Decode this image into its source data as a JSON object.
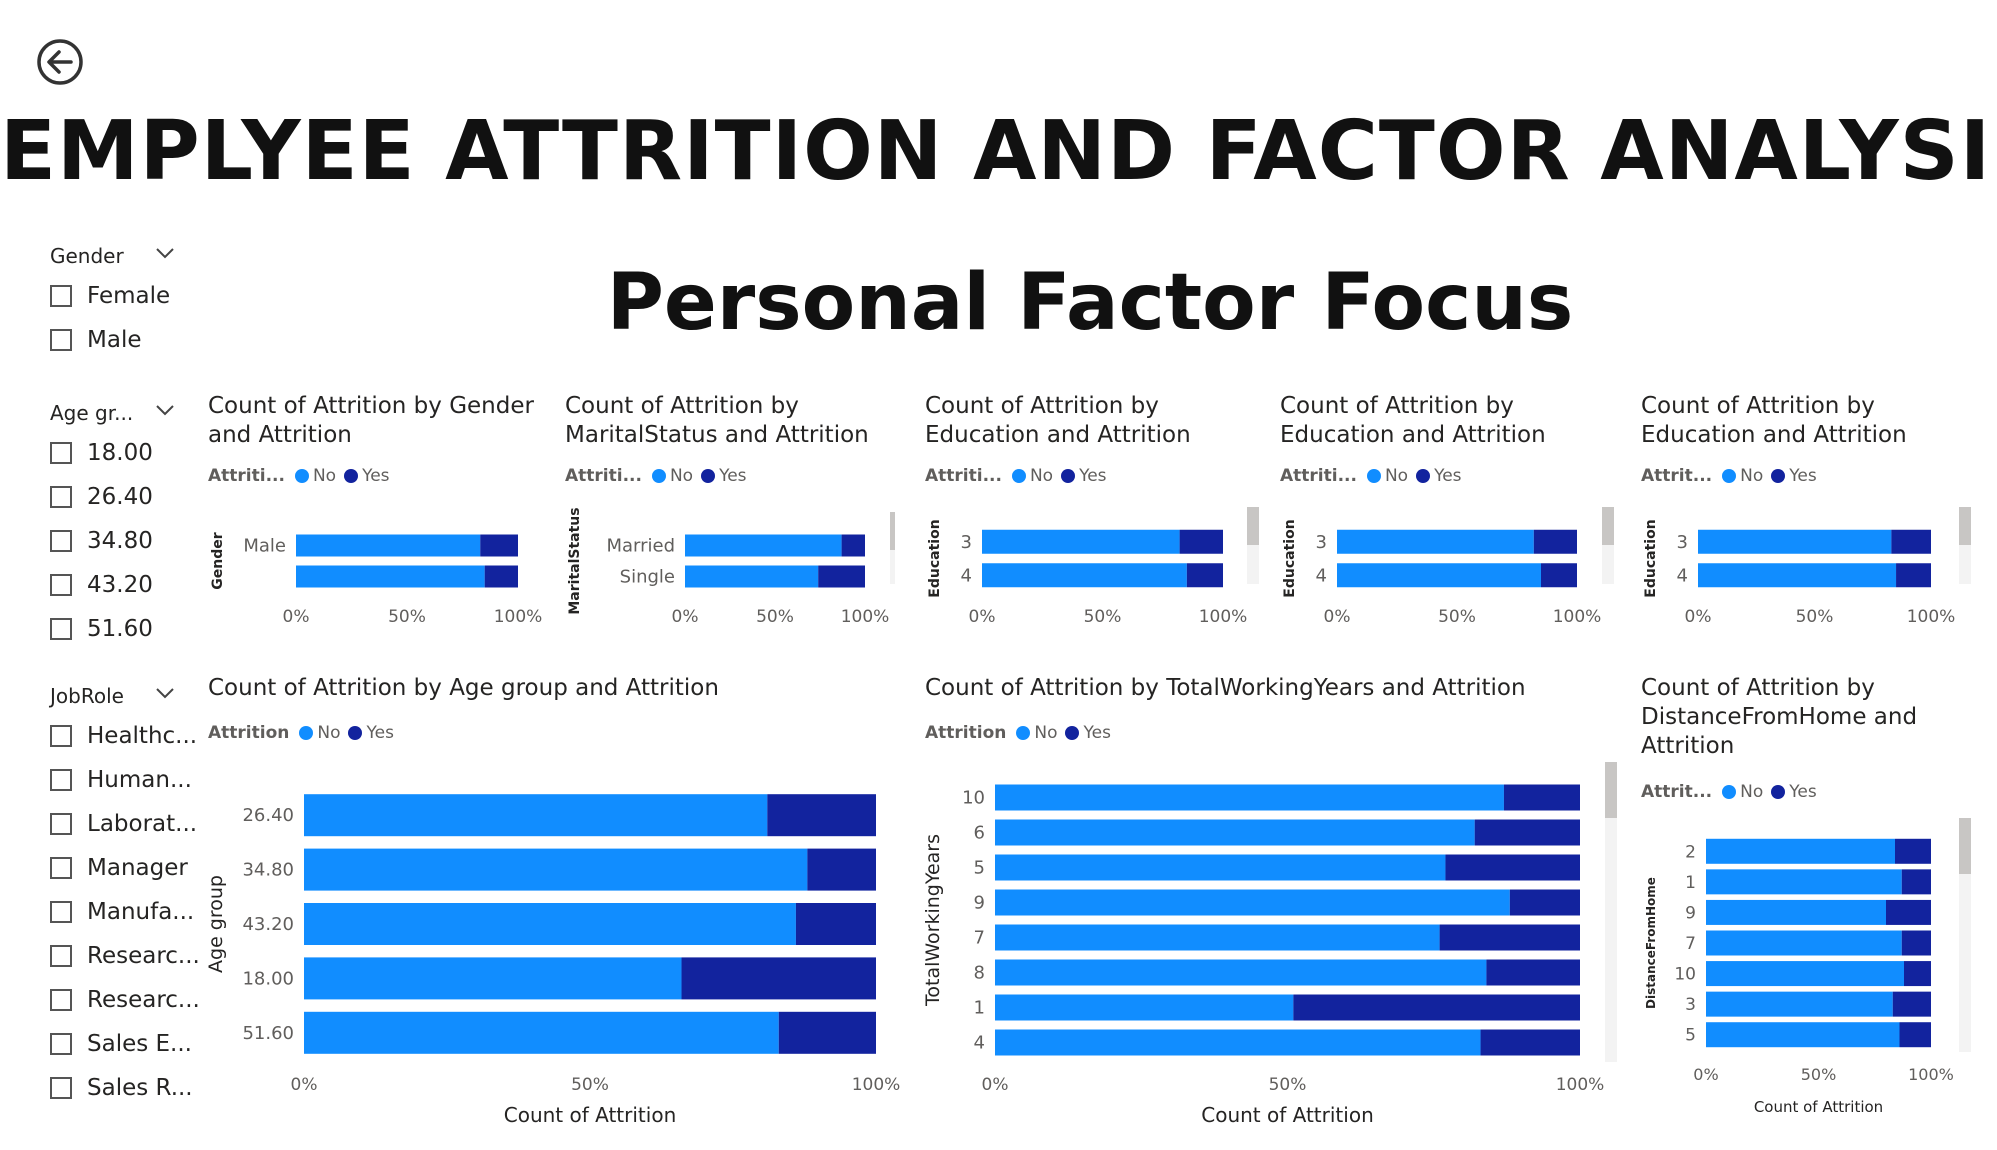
{
  "title": "EMPLYEE ATTRITION AND FACTOR ANALYSIS",
  "subtitle": "Personal Factor Focus",
  "icons": {
    "back": "back-arrow-icon",
    "chevron": "chevron-down-icon"
  },
  "colors": {
    "no": "#118dff",
    "yes": "#12239e",
    "text": "#252423",
    "axis": "#605e5c"
  },
  "slicers": [
    {
      "title": "Gender",
      "items": [
        "Female",
        "Male"
      ]
    },
    {
      "title": "Age gr...",
      "items": [
        "18.00",
        "26.40",
        "34.80",
        "43.20",
        "51.60"
      ]
    },
    {
      "title": "JobRole",
      "items": [
        "Healthc...",
        "Human...",
        "Laborat...",
        "Manager",
        "Manufa...",
        "Researc...",
        "Researc...",
        "Sales E...",
        "Sales R..."
      ]
    }
  ],
  "chart_data": [
    {
      "type": "bar",
      "stacked": "100%",
      "orientation": "horizontal",
      "title": "Count of Attrition by Gender and Attrition",
      "legend_title": "Attriti...",
      "ylabel": "Gender",
      "xlabel": "",
      "categories": [
        "Male",
        ""
      ],
      "series": [
        {
          "name": "No",
          "values": [
            83,
            85
          ]
        },
        {
          "name": "Yes",
          "values": [
            17,
            15
          ]
        }
      ],
      "xticks": [
        "0%",
        "50%",
        "100%"
      ],
      "scrollbar": false
    },
    {
      "type": "bar",
      "stacked": "100%",
      "orientation": "horizontal",
      "title": "Count of Attrition by MaritalStatus and Attrition",
      "legend_title": "Attriti...",
      "ylabel": "MaritalStatus",
      "xlabel": "",
      "categories": [
        "Married",
        "Single"
      ],
      "series": [
        {
          "name": "No",
          "values": [
            87,
            74
          ]
        },
        {
          "name": "Yes",
          "values": [
            13,
            26
          ]
        }
      ],
      "xticks": [
        "0%",
        "50%",
        "100%"
      ],
      "scrollbar": true
    },
    {
      "type": "bar",
      "stacked": "100%",
      "orientation": "horizontal",
      "title": "Count of Attrition by Education and Attrition",
      "legend_title": "Attriti...",
      "ylabel": "Education",
      "xlabel": "",
      "categories": [
        "3",
        "4"
      ],
      "series": [
        {
          "name": "No",
          "values": [
            82,
            85
          ]
        },
        {
          "name": "Yes",
          "values": [
            18,
            15
          ]
        }
      ],
      "xticks": [
        "0%",
        "50%",
        "100%"
      ],
      "scrollbar": true
    },
    {
      "type": "bar",
      "stacked": "100%",
      "orientation": "horizontal",
      "title": "Count of Attrition by Education and Attrition",
      "legend_title": "Attriti...",
      "ylabel": "Education",
      "xlabel": "",
      "categories": [
        "3",
        "4"
      ],
      "series": [
        {
          "name": "No",
          "values": [
            82,
            85
          ]
        },
        {
          "name": "Yes",
          "values": [
            18,
            15
          ]
        }
      ],
      "xticks": [
        "0%",
        "50%",
        "100%"
      ],
      "scrollbar": true
    },
    {
      "type": "bar",
      "stacked": "100%",
      "orientation": "horizontal",
      "title": "Count of Attrition by Education and Attrition",
      "legend_title": "Attrit...",
      "ylabel": "Education",
      "xlabel": "",
      "categories": [
        "3",
        "4"
      ],
      "series": [
        {
          "name": "No",
          "values": [
            83,
            85
          ]
        },
        {
          "name": "Yes",
          "values": [
            17,
            15
          ]
        }
      ],
      "xticks": [
        "0%",
        "50%",
        "100%"
      ],
      "scrollbar": true
    },
    {
      "type": "bar",
      "stacked": "100%",
      "orientation": "horizontal",
      "title": "Count of Attrition by Age group and Attrition",
      "legend_title": "Attrition",
      "ylabel": "Age group",
      "xlabel": "Count of Attrition",
      "categories": [
        "26.40",
        "34.80",
        "43.20",
        "18.00",
        "51.60"
      ],
      "series": [
        {
          "name": "No",
          "values": [
            81,
            88,
            86,
            66,
            83
          ]
        },
        {
          "name": "Yes",
          "values": [
            19,
            12,
            14,
            34,
            17
          ]
        }
      ],
      "xticks": [
        "0%",
        "50%",
        "100%"
      ],
      "scrollbar": false
    },
    {
      "type": "bar",
      "stacked": "100%",
      "orientation": "horizontal",
      "title": "Count of Attrition by TotalWorkingYears and Attrition",
      "legend_title": "Attrition",
      "ylabel": "TotalWorkingYears",
      "xlabel": "Count of Attrition",
      "categories": [
        "10",
        "6",
        "5",
        "9",
        "7",
        "8",
        "1",
        "4"
      ],
      "series": [
        {
          "name": "No",
          "values": [
            87,
            82,
            77,
            88,
            76,
            84,
            51,
            83
          ]
        },
        {
          "name": "Yes",
          "values": [
            13,
            18,
            23,
            12,
            24,
            16,
            49,
            17
          ]
        }
      ],
      "xticks": [
        "0%",
        "50%",
        "100%"
      ],
      "scrollbar": true
    },
    {
      "type": "bar",
      "stacked": "100%",
      "orientation": "horizontal",
      "title": "Count of Attrition by DistanceFromHome and Attrition",
      "legend_title": "Attrit...",
      "ylabel": "DistanceFromHome",
      "xlabel": "Count of Attrition",
      "categories": [
        "2",
        "1",
        "9",
        "7",
        "10",
        "3",
        "5"
      ],
      "series": [
        {
          "name": "No",
          "values": [
            84,
            87,
            80,
            87,
            88,
            83,
            86
          ]
        },
        {
          "name": "Yes",
          "values": [
            16,
            13,
            20,
            13,
            12,
            17,
            14
          ]
        }
      ],
      "xticks": [
        "0%",
        "50%",
        "100%"
      ],
      "scrollbar": true
    }
  ]
}
